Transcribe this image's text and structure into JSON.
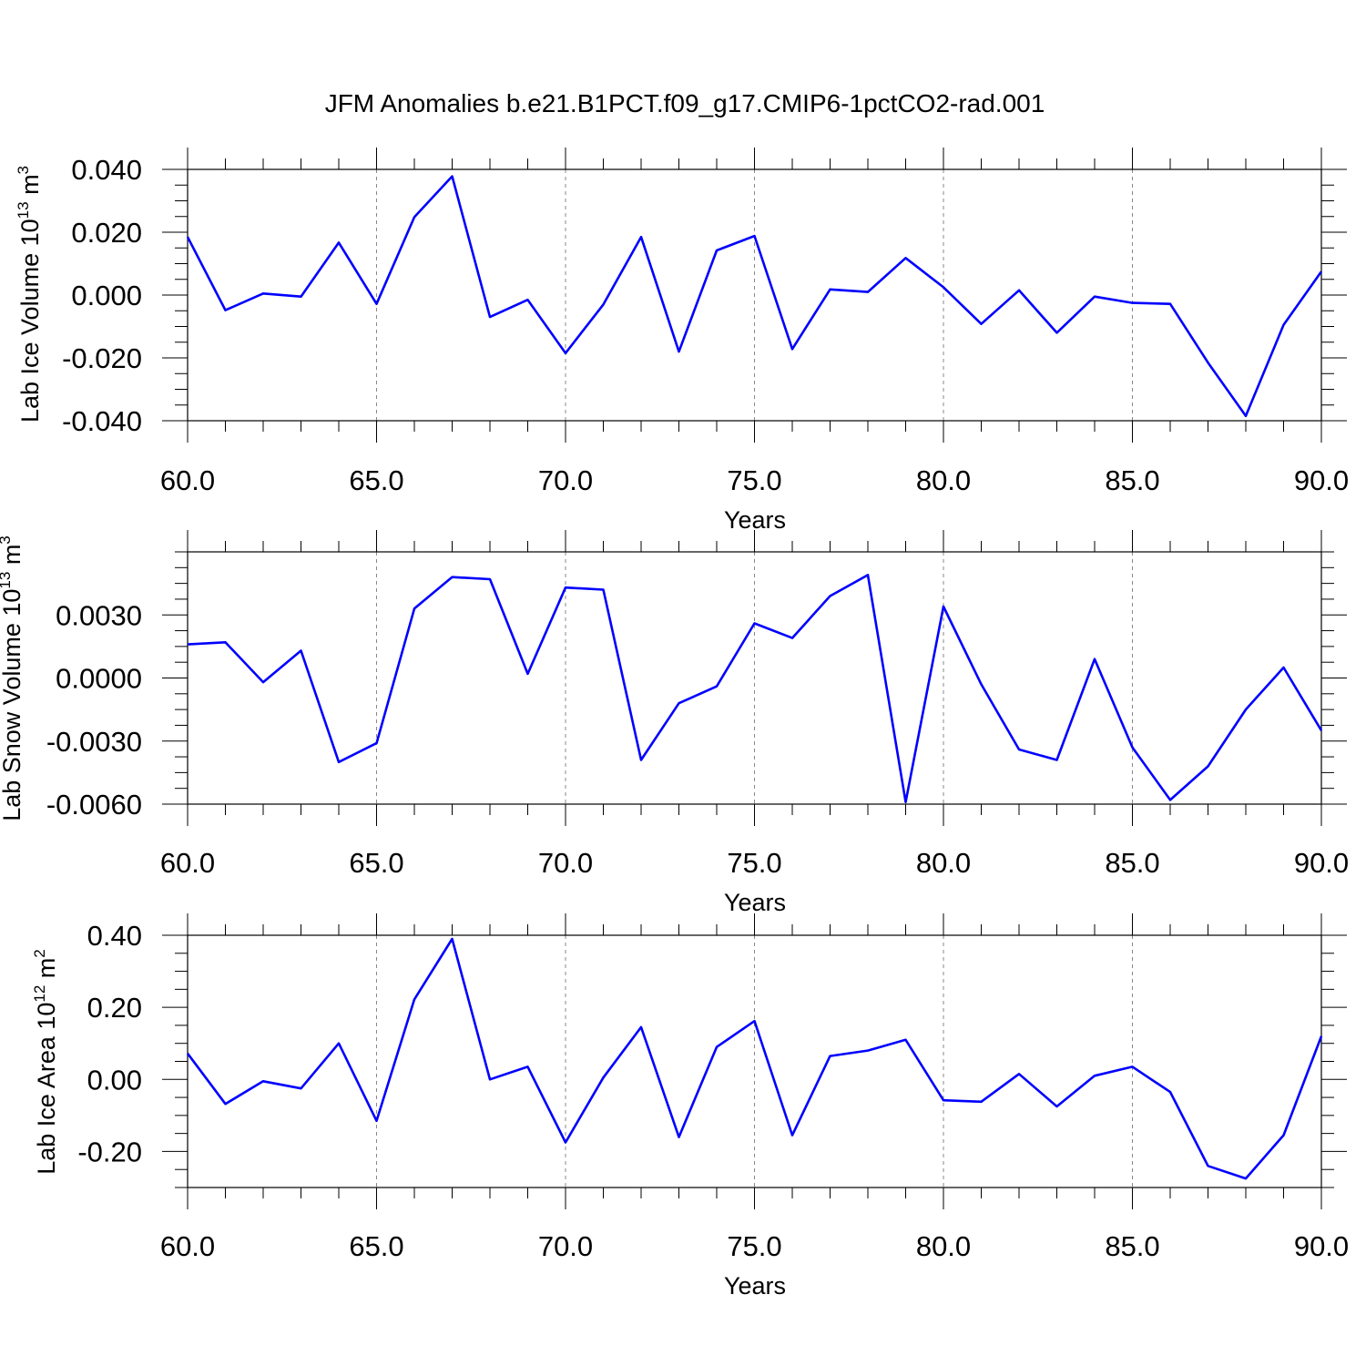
{
  "title": "JFM Anomalies b.e21.B1PCT.f09_g17.CMIP6-1pctCO2-rad.001",
  "colors": {
    "line": "#0000ff",
    "axis": "#000000",
    "grid": "#888888"
  },
  "chart_data": [
    {
      "type": "line",
      "ylabel_prefix": "Lab Ice Volume 10",
      "ylabel_exp1": "13",
      "ylabel_unit": " m",
      "ylabel_exp2": "3",
      "xlabel": "Years",
      "xlim": [
        60,
        90
      ],
      "ylim": [
        -0.04,
        0.04
      ],
      "xticks": [
        60,
        65,
        70,
        75,
        80,
        85,
        90
      ],
      "xtick_labels": [
        "60.0",
        "65.0",
        "70.0",
        "75.0",
        "80.0",
        "85.0",
        "90.0"
      ],
      "yticks": [
        -0.04,
        -0.02,
        0,
        0.02,
        0.04
      ],
      "ytick_labels": [
        "-0.040",
        "-0.020",
        "0.000",
        "0.020",
        "0.040"
      ],
      "grid": "vertical dashed at major x ticks",
      "x": [
        60,
        61,
        62,
        63,
        64,
        65,
        66,
        67,
        68,
        69,
        70,
        71,
        72,
        73,
        74,
        75,
        76,
        77,
        78,
        79,
        80,
        81,
        82,
        83,
        84,
        85,
        86,
        87,
        88,
        89,
        90
      ],
      "values": [
        0.0185,
        -0.0048,
        0.0005,
        -0.0005,
        0.0167,
        -0.0028,
        0.0248,
        0.0378,
        -0.007,
        -0.0015,
        -0.0185,
        -0.003,
        0.0185,
        -0.018,
        0.0142,
        0.0188,
        -0.0172,
        0.0018,
        0.001,
        0.0118,
        0.0025,
        -0.0092,
        0.0015,
        -0.012,
        -0.0005,
        -0.0025,
        -0.0028,
        -0.0215,
        -0.0385,
        -0.0095,
        0.0075
      ]
    },
    {
      "type": "line",
      "ylabel_prefix": "Lab Snow Volume 10",
      "ylabel_exp1": "13",
      "ylabel_unit": " m",
      "ylabel_exp2": "3",
      "xlabel": "Years",
      "xlim": [
        60,
        90
      ],
      "ylim": [
        -0.006,
        0.006
      ],
      "xticks": [
        60,
        65,
        70,
        75,
        80,
        85,
        90
      ],
      "xtick_labels": [
        "60.0",
        "65.0",
        "70.0",
        "75.0",
        "80.0",
        "85.0",
        "90.0"
      ],
      "yticks": [
        -0.006,
        -0.003,
        0,
        0.003
      ],
      "ytick_labels": [
        "-0.0060",
        "-0.0030",
        "0.0000",
        "0.0030"
      ],
      "grid": "vertical dashed at major x ticks",
      "x": [
        60,
        61,
        62,
        63,
        64,
        65,
        66,
        67,
        68,
        69,
        70,
        71,
        72,
        73,
        74,
        75,
        76,
        77,
        78,
        79,
        80,
        81,
        82,
        83,
        84,
        85,
        86,
        87,
        88,
        89,
        90
      ],
      "values": [
        0.0016,
        0.0017,
        -0.0002,
        0.0013,
        -0.004,
        -0.0031,
        0.0033,
        0.0048,
        0.0047,
        0.0002,
        0.0043,
        0.0042,
        -0.0039,
        -0.0012,
        -0.0004,
        0.0026,
        0.0019,
        0.0039,
        0.0049,
        -0.0059,
        0.0034,
        -0.0003,
        -0.0034,
        -0.0039,
        0.0009,
        -0.0033,
        -0.0058,
        -0.0042,
        -0.0015,
        0.0005,
        -0.0025
      ]
    },
    {
      "type": "line",
      "ylabel_prefix": "Lab Ice Area 10",
      "ylabel_exp1": "12",
      "ylabel_unit": " m",
      "ylabel_exp2": "2",
      "xlabel": "Years",
      "xlim": [
        60,
        90
      ],
      "ylim": [
        -0.3,
        0.4
      ],
      "xticks": [
        60,
        65,
        70,
        75,
        80,
        85,
        90
      ],
      "xtick_labels": [
        "60.0",
        "65.0",
        "70.0",
        "75.0",
        "80.0",
        "85.0",
        "90.0"
      ],
      "yticks": [
        -0.2,
        0,
        0.2,
        0.4
      ],
      "ytick_labels": [
        "-0.20",
        "0.00",
        "0.20",
        "0.40"
      ],
      "grid": "vertical dashed at major x ticks",
      "x": [
        60,
        61,
        62,
        63,
        64,
        65,
        66,
        67,
        68,
        69,
        70,
        71,
        72,
        73,
        74,
        75,
        76,
        77,
        78,
        79,
        80,
        81,
        82,
        83,
        84,
        85,
        86,
        87,
        88,
        89,
        90
      ],
      "values": [
        0.072,
        -0.068,
        -0.005,
        -0.025,
        0.1,
        -0.115,
        0.222,
        0.39,
        0.0,
        0.035,
        -0.175,
        0.005,
        0.145,
        -0.16,
        0.09,
        0.162,
        -0.155,
        0.065,
        0.08,
        0.11,
        -0.058,
        -0.062,
        0.015,
        -0.075,
        0.01,
        0.035,
        -0.035,
        -0.24,
        -0.275,
        -0.155,
        0.12
      ]
    }
  ]
}
